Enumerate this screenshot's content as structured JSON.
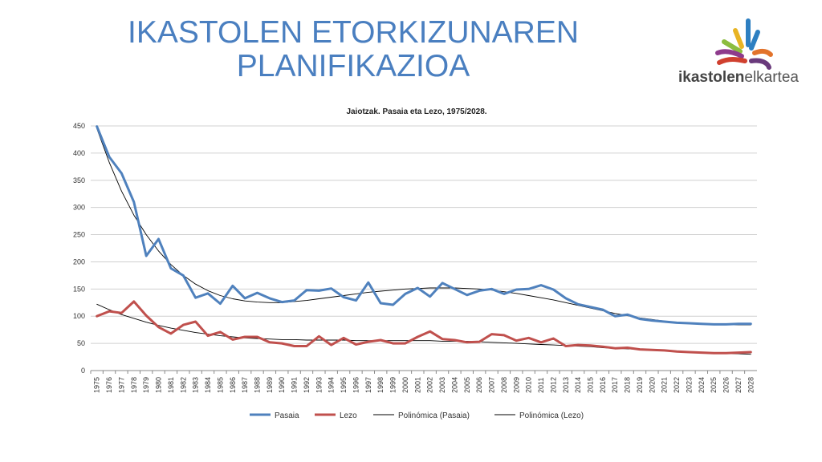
{
  "slide": {
    "title_line1": "IKASTOLEN ETORKIZUNAREN",
    "title_line2": "PLANIFIKAZIOA"
  },
  "logo": {
    "text_bold": "ikastolen",
    "text_light": "elkartea",
    "icon": "hands-fan-logo-icon",
    "colors": [
      "#e8b424",
      "#8cbd3f",
      "#2d7fc1",
      "#e2732b",
      "#d0402f",
      "#8e3b8c",
      "#6a3a7c"
    ]
  },
  "chart_data": {
    "type": "line",
    "title": "Jaiotzak. Pasaia eta Lezo, 1975/2028.",
    "ylim": [
      0,
      450
    ],
    "yticks": [
      0,
      50,
      100,
      150,
      200,
      250,
      300,
      350,
      400,
      450
    ],
    "grid": true,
    "legend_position": "bottom",
    "x": [
      "1975",
      "1976",
      "1977",
      "1978",
      "1979",
      "1980",
      "1981",
      "1982",
      "1983",
      "1984",
      "1985",
      "1986",
      "1987",
      "1988",
      "1989",
      "1990",
      "1991",
      "1992",
      "1993",
      "1994",
      "1995",
      "1996",
      "1997",
      "1998",
      "1999",
      "2000",
      "2001",
      "2002",
      "2003",
      "2004",
      "2005",
      "2006",
      "2007",
      "2008",
      "2009",
      "2010",
      "2011",
      "2012",
      "2013",
      "2014",
      "2015",
      "2016",
      "2017",
      "2018",
      "2019",
      "2020",
      "2021",
      "2022",
      "2023",
      "2024",
      "2025",
      "2026",
      "2027",
      "2028"
    ],
    "series": [
      {
        "name": "Pasaia",
        "color": "#4f81bd",
        "style": "thick",
        "values": [
          449,
          393,
          363,
          310,
          211,
          242,
          188,
          175,
          134,
          142,
          123,
          156,
          133,
          143,
          133,
          126,
          129,
          148,
          147,
          151,
          135,
          129,
          162,
          124,
          121,
          141,
          152,
          136,
          161,
          150,
          139,
          147,
          150,
          141,
          149,
          150,
          157,
          149,
          133,
          122,
          117,
          112,
          100,
          103,
          95,
          92,
          90,
          88,
          87,
          86,
          85,
          85,
          86,
          86
        ]
      },
      {
        "name": "Lezo",
        "color": "#c0504d",
        "style": "thick",
        "values": [
          100,
          109,
          106,
          127,
          101,
          80,
          68,
          84,
          90,
          64,
          71,
          57,
          62,
          62,
          52,
          50,
          45,
          45,
          63,
          47,
          60,
          48,
          53,
          56,
          50,
          50,
          62,
          72,
          58,
          56,
          52,
          53,
          67,
          65,
          55,
          60,
          52,
          59,
          45,
          47,
          46,
          44,
          41,
          42,
          39,
          38,
          37,
          35,
          34,
          33,
          32,
          32,
          33,
          34
        ]
      },
      {
        "name": "Polinómica (Pasaia)",
        "color": "#000000",
        "style": "thin",
        "values": [
          445,
          383,
          330,
          286,
          250,
          220,
          195,
          175,
          159,
          147,
          138,
          132,
          128,
          126,
          125,
          125,
          127,
          129,
          132,
          135,
          138,
          141,
          144,
          146,
          148,
          150,
          151,
          152,
          152,
          152,
          151,
          150,
          148,
          145,
          142,
          138,
          134,
          130,
          125,
          120,
          115,
          110,
          105,
          101,
          97,
          94,
          91,
          89,
          87,
          86,
          85,
          84,
          84,
          84
        ]
      },
      {
        "name": "Polinómica (Lezo)",
        "color": "#000000",
        "style": "thin",
        "values": [
          122,
          112,
          103,
          96,
          89,
          83,
          78,
          74,
          70,
          67,
          64,
          62,
          60,
          59,
          58,
          57,
          57,
          56,
          56,
          56,
          56,
          55,
          55,
          55,
          55,
          55,
          55,
          55,
          54,
          54,
          54,
          53,
          52,
          51,
          50,
          49,
          48,
          47,
          46,
          45,
          44,
          42,
          41,
          40,
          39,
          37,
          36,
          35,
          34,
          33,
          32,
          31,
          31,
          30
        ]
      }
    ]
  }
}
